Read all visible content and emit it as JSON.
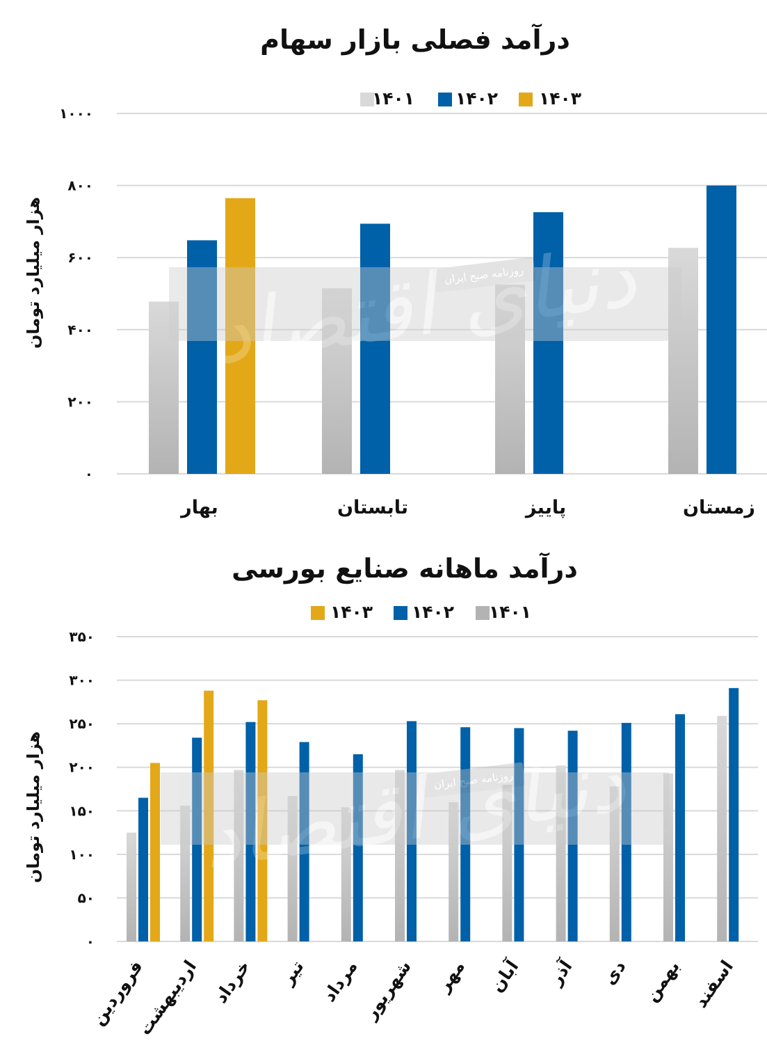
{
  "colors": {
    "y1401_top": "#d9d9d9",
    "y1401_bottom": "#b3b3b3",
    "y1402": "#0060a8",
    "y1403": "#e3a818",
    "grid": "#d9d9d9",
    "watermark": "#cccccc"
  },
  "watermark": {
    "newspaper": "روزنامه صبح ایران",
    "brand": "دنیای اقتصاد"
  },
  "chart_data": [
    {
      "type": "bar",
      "title": "درآمد فصلی بازار سهام",
      "ylabel": "هزار میلیارد تومان",
      "ylim": [
        0,
        1000
      ],
      "yticks": [
        "۰",
        "۲۰۰",
        "۴۰۰",
        "۶۰۰",
        "۸۰۰",
        "۱۰۰۰"
      ],
      "categories": [
        "بهار",
        "تابستان",
        "پاییز",
        "زمستان"
      ],
      "legend": [
        "۱۴۰۱",
        "۱۴۰۲",
        "۱۴۰۳"
      ],
      "legend_position": "top",
      "series": [
        {
          "name": "۱۴۰۱",
          "values": [
            478,
            515,
            525,
            627
          ]
        },
        {
          "name": "۱۴۰۲",
          "values": [
            648,
            694,
            726,
            800
          ]
        },
        {
          "name": "۱۴۰۳",
          "values": [
            765,
            null,
            null,
            null
          ]
        }
      ]
    },
    {
      "type": "bar",
      "title": "درآمد ماهانه صنایع بورسی",
      "ylabel": "هزار میلیارد تومان",
      "ylim": [
        0,
        350
      ],
      "yticks": [
        "۰",
        "۵۰",
        "۱۰۰",
        "۱۵۰",
        "۲۰۰",
        "۲۵۰",
        "۳۰۰",
        "۳۵۰"
      ],
      "categories": [
        "فروردین",
        "اردیبهشت",
        "خرداد",
        "تیر",
        "مرداد",
        "شهریور",
        "مهر",
        "آبان",
        "آذر",
        "دی",
        "بهمن",
        "اسفند"
      ],
      "legend": [
        "۱۴۰۳",
        "۱۴۰۲",
        "۱۴۰۱"
      ],
      "legend_position": "top",
      "series": [
        {
          "name": "۱۴۰۱",
          "values": [
            125,
            156,
            197,
            167,
            154,
            197,
            160,
            180,
            202,
            178,
            193,
            259
          ]
        },
        {
          "name": "۱۴۰۲",
          "values": [
            165,
            234,
            252,
            229,
            215,
            253,
            246,
            245,
            242,
            251,
            261,
            291
          ]
        },
        {
          "name": "۱۴۰۳",
          "values": [
            205,
            288,
            277,
            null,
            null,
            null,
            null,
            null,
            null,
            null,
            null,
            null
          ]
        }
      ]
    }
  ]
}
